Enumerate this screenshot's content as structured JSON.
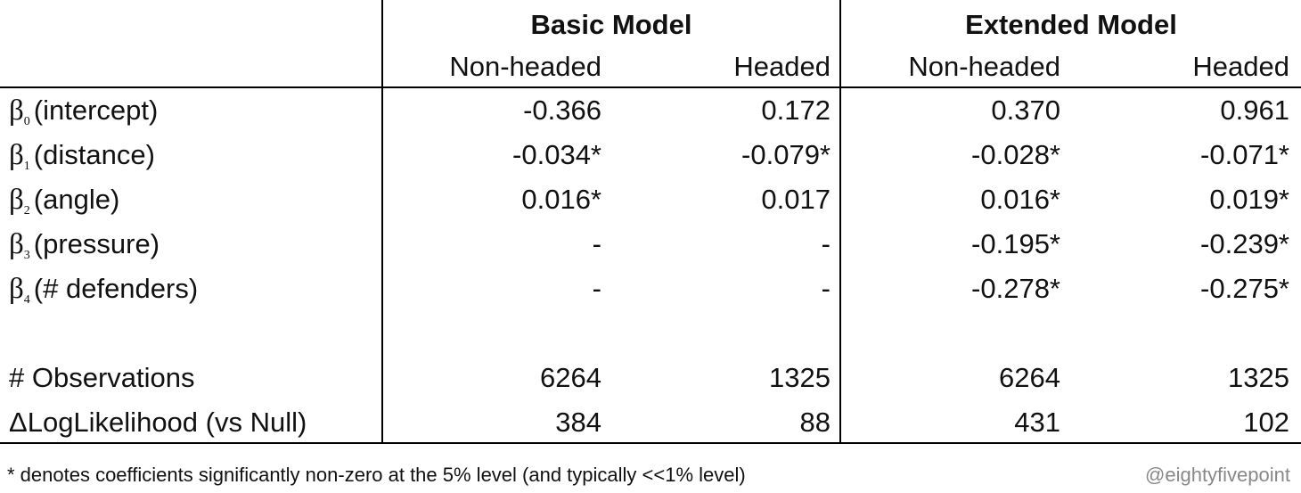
{
  "header": {
    "groups": [
      "Basic Model",
      "Extended Model"
    ],
    "columns": [
      "Non-headed",
      "Headed",
      "Non-headed",
      "Headed"
    ]
  },
  "table": {
    "rows": [
      {
        "label": {
          "symbol": "β",
          "sub": "0",
          "text": "(intercept)"
        },
        "cells": [
          "-0.366",
          "0.172",
          "0.370",
          "0.961"
        ]
      },
      {
        "label": {
          "symbol": "β",
          "sub": "1",
          "text": "(distance)"
        },
        "cells": [
          "-0.034*",
          "-0.079*",
          "-0.028*",
          "-0.071*"
        ]
      },
      {
        "label": {
          "symbol": "β",
          "sub": "2",
          "text": "(angle)"
        },
        "cells": [
          "0.016*",
          "0.017",
          "0.016*",
          "0.019*"
        ]
      },
      {
        "label": {
          "symbol": "β",
          "sub": "3",
          "text": "(pressure)"
        },
        "cells": [
          "-",
          "-",
          "-0.195*",
          "-0.239*"
        ]
      },
      {
        "label": {
          "symbol": "β",
          "sub": "4",
          "text": "(# defenders)"
        },
        "cells": [
          "-",
          "-",
          "-0.278*",
          "-0.275*"
        ]
      }
    ],
    "stats": [
      {
        "label": "# Observations",
        "cells": [
          "6264",
          "1325",
          "6264",
          "1325"
        ]
      },
      {
        "label": "ΔLogLikelihood (vs Null)",
        "cells": [
          "384",
          "88",
          "431",
          "102"
        ]
      }
    ]
  },
  "footnote": "* denotes coefficients significantly non-zero at the 5% level (and typically <<1% level)",
  "credit": "@eightyfivepoint"
}
